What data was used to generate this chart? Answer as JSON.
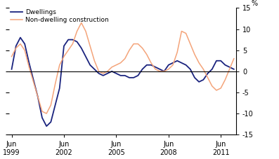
{
  "ylabel_right": "%",
  "ylim": [
    -15,
    15
  ],
  "yticks": [
    -15,
    -10,
    -5,
    0,
    5,
    10,
    15
  ],
  "legend_dwellings": "Dwellings",
  "legend_non_dwelling": "Non-dwelling construction",
  "color_dwellings": "#1a237e",
  "color_non_dwelling": "#f4a47a",
  "xtick_labels": [
    "Jun\n1999",
    "Jun\n2002",
    "Jun\n2005",
    "Jun\n2008",
    "Jun\n2011"
  ],
  "xtick_positions": [
    0,
    12,
    24,
    36,
    48
  ],
  "dwellings": [
    0.5,
    6.0,
    8.0,
    6.5,
    2.0,
    -2.0,
    -6.0,
    -11.0,
    -13.0,
    -12.0,
    -8.0,
    -4.0,
    6.0,
    7.5,
    7.5,
    7.0,
    5.5,
    3.5,
    1.5,
    0.5,
    -0.5,
    -1.0,
    -0.5,
    0.0,
    -0.5,
    -1.0,
    -1.0,
    -1.5,
    -1.5,
    -1.0,
    0.5,
    1.5,
    1.5,
    1.0,
    0.5,
    0.0,
    1.5,
    2.0,
    2.5,
    2.0,
    1.5,
    0.5,
    -1.5,
    -2.5,
    -2.0,
    -0.5,
    0.5,
    2.5,
    2.5,
    1.5,
    1.0,
    0.5
  ],
  "non_dwelling": [
    3.5,
    5.5,
    6.5,
    5.0,
    1.0,
    -2.5,
    -6.0,
    -9.5,
    -10.0,
    -8.0,
    -3.0,
    1.5,
    3.5,
    5.0,
    6.5,
    9.5,
    11.5,
    9.5,
    6.0,
    2.5,
    0.0,
    -0.5,
    0.0,
    1.0,
    1.5,
    2.0,
    3.0,
    5.0,
    6.5,
    6.5,
    5.5,
    4.0,
    2.0,
    0.5,
    0.0,
    0.0,
    0.5,
    1.5,
    4.5,
    9.5,
    9.0,
    6.5,
    4.0,
    2.0,
    0.5,
    -1.5,
    -3.5,
    -4.5,
    -4.0,
    -2.0,
    0.5,
    3.0
  ]
}
